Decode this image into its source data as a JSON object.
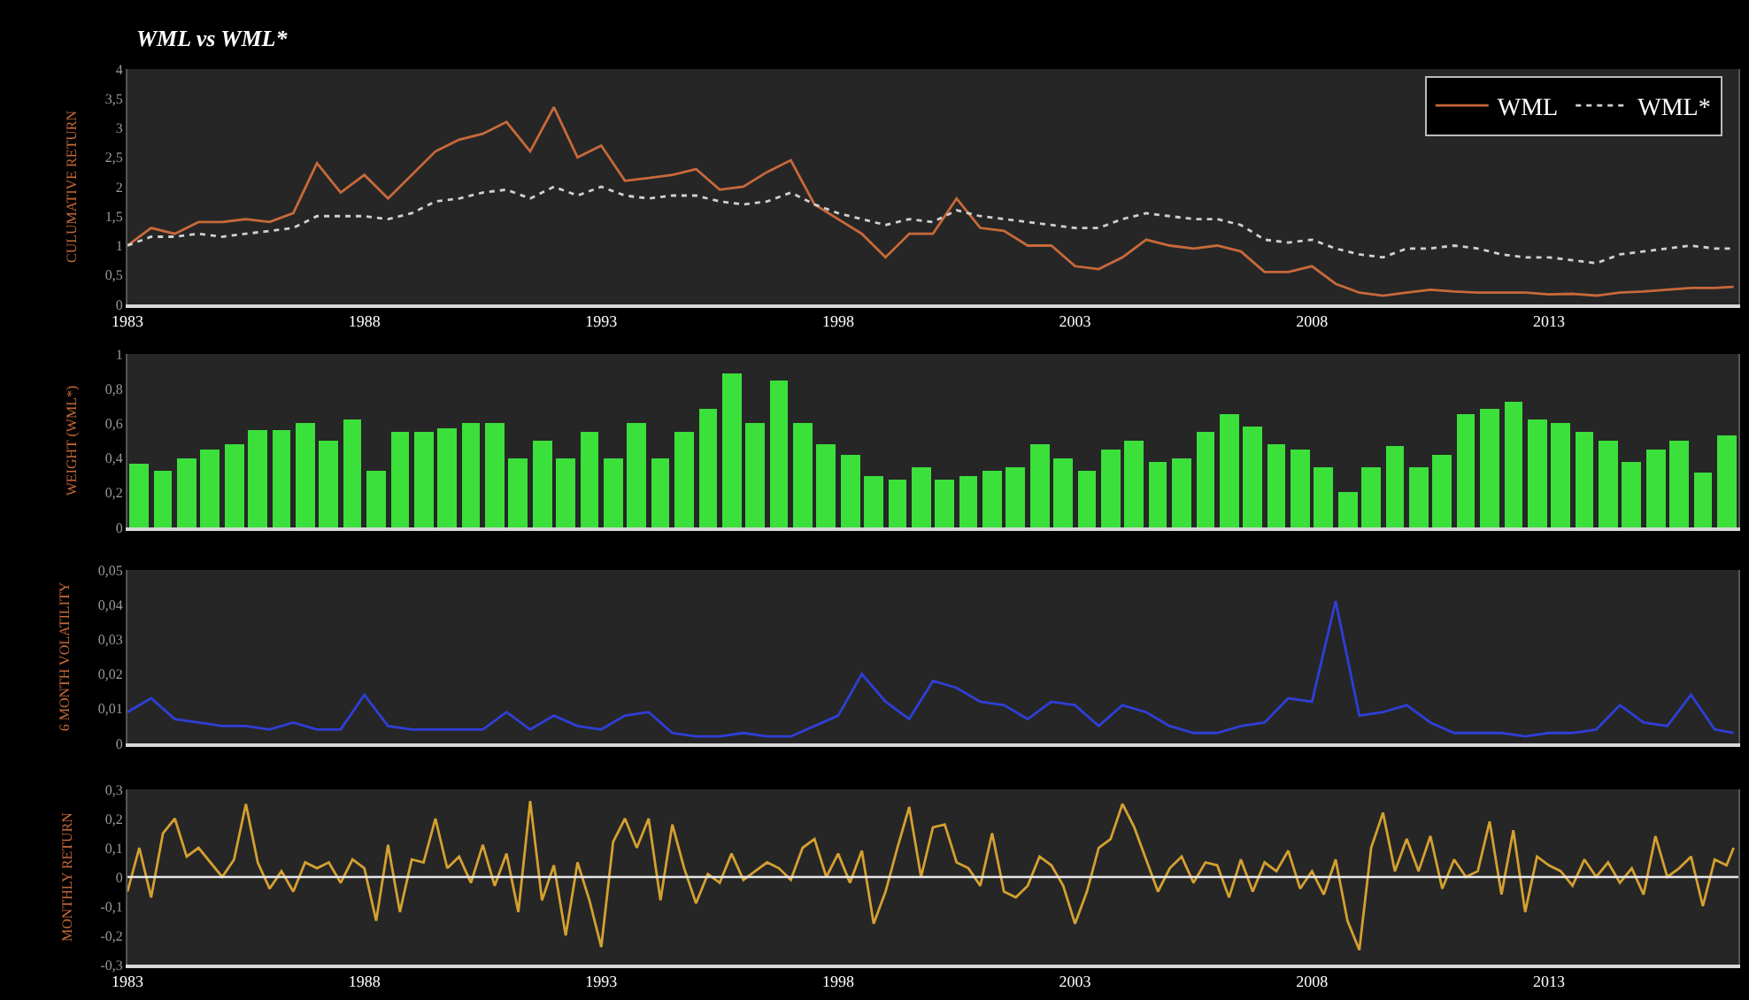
{
  "chart_data": [
    {
      "type": "line",
      "title": "WML vs WML*",
      "ylabel": "CULUMATIVE RETURN",
      "legend": "top right",
      "grid": false,
      "marker": "none",
      "xlim": [
        1983,
        2017
      ],
      "xticks": [
        1983,
        1988,
        1993,
        1998,
        2003,
        2008,
        2013
      ],
      "ylim": [
        0,
        4
      ],
      "yticks": [
        0,
        {
          "value": 0.5,
          "label": "0,5"
        },
        1,
        {
          "value": 1.5,
          "label": "1,5"
        },
        2,
        {
          "value": 2.5,
          "label": "2,5"
        },
        3,
        {
          "value": 3.5,
          "label": "3,5"
        },
        4
      ],
      "x": [
        1983,
        1983.5,
        1984,
        1984.5,
        1985,
        1985.5,
        1986,
        1986.5,
        1987,
        1987.5,
        1988,
        1988.5,
        1989,
        1989.5,
        1990,
        1990.5,
        1991,
        1991.5,
        1992,
        1992.5,
        1993,
        1993.5,
        1994,
        1994.5,
        1995,
        1995.5,
        1996,
        1996.5,
        1997,
        1997.5,
        1998,
        1998.5,
        1999,
        1999.5,
        2000,
        2000.5,
        2001,
        2001.5,
        2002,
        2002.5,
        2003,
        2003.5,
        2004,
        2004.5,
        2005,
        2005.5,
        2006,
        2006.5,
        2007,
        2007.5,
        2008,
        2008.5,
        2009,
        2009.5,
        2010,
        2010.5,
        2011,
        2011.5,
        2012,
        2012.5,
        2013,
        2013.5,
        2014,
        2014.5,
        2015,
        2015.5,
        2016,
        2016.5,
        2016.9
      ],
      "series": [
        {
          "name": "WML",
          "color": "#c8693a",
          "line_style": "solid",
          "values": [
            1.0,
            1.3,
            1.2,
            1.4,
            1.4,
            1.45,
            1.4,
            1.55,
            2.4,
            1.9,
            2.2,
            1.8,
            2.2,
            2.6,
            2.8,
            2.9,
            3.1,
            2.6,
            3.35,
            2.5,
            2.7,
            2.1,
            2.15,
            2.2,
            2.3,
            1.95,
            2.0,
            2.25,
            2.45,
            1.7,
            1.45,
            1.2,
            0.8,
            1.2,
            1.2,
            1.8,
            1.3,
            1.25,
            1.0,
            1.0,
            0.65,
            0.6,
            0.8,
            1.1,
            1.0,
            0.95,
            1.0,
            0.9,
            0.55,
            0.55,
            0.65,
            0.35,
            0.2,
            0.15,
            0.2,
            0.25,
            0.22,
            0.2,
            0.2,
            0.2,
            0.17,
            0.18,
            0.15,
            0.2,
            0.22,
            0.25,
            0.28,
            0.28,
            0.3
          ]
        },
        {
          "name": "WML*",
          "color": "#d0d0d0",
          "line_style": "dotted",
          "values": [
            1.0,
            1.15,
            1.15,
            1.2,
            1.15,
            1.2,
            1.25,
            1.3,
            1.5,
            1.5,
            1.5,
            1.45,
            1.55,
            1.75,
            1.8,
            1.9,
            1.95,
            1.8,
            2.0,
            1.85,
            2.0,
            1.85,
            1.8,
            1.85,
            1.85,
            1.75,
            1.7,
            1.75,
            1.9,
            1.7,
            1.55,
            1.45,
            1.35,
            1.45,
            1.4,
            1.6,
            1.5,
            1.45,
            1.4,
            1.35,
            1.3,
            1.3,
            1.45,
            1.55,
            1.5,
            1.45,
            1.45,
            1.35,
            1.1,
            1.05,
            1.1,
            0.95,
            0.85,
            0.8,
            0.95,
            0.95,
            1.0,
            0.95,
            0.85,
            0.8,
            0.8,
            0.75,
            0.7,
            0.85,
            0.9,
            0.95,
            1.0,
            0.95,
            0.95
          ]
        }
      ]
    },
    {
      "type": "bar",
      "ylabel": "WEIGHT (WML*)",
      "grid": false,
      "tick_labels": "y",
      "xlim": [
        1983,
        2017
      ],
      "xticks": [
        1983,
        1988,
        1993,
        1998,
        2003,
        2008,
        2013
      ],
      "ylim": [
        0,
        1
      ],
      "yticks": [
        0,
        {
          "value": 0.2,
          "label": "0,2"
        },
        {
          "value": 0.4,
          "label": "0,4"
        },
        {
          "value": 0.6,
          "label": "0,6"
        },
        {
          "value": 0.8,
          "label": "0,8"
        },
        1
      ],
      "x": [
        1983.25,
        1983.75,
        1984.25,
        1984.75,
        1985.25,
        1985.75,
        1986.25,
        1986.75,
        1987.25,
        1987.75,
        1988.25,
        1988.75,
        1989.25,
        1989.75,
        1990.25,
        1990.75,
        1991.25,
        1991.75,
        1992.25,
        1992.75,
        1993.25,
        1993.75,
        1994.25,
        1994.75,
        1995.25,
        1995.75,
        1996.25,
        1996.75,
        1997.25,
        1997.75,
        1998.25,
        1998.75,
        1999.25,
        1999.75,
        2000.25,
        2000.75,
        2001.25,
        2001.75,
        2002.25,
        2002.75,
        2003.25,
        2003.75,
        2004.25,
        2004.75,
        2005.25,
        2005.75,
        2006.25,
        2006.75,
        2007.25,
        2007.75,
        2008.25,
        2008.75,
        2009.25,
        2009.75,
        2010.25,
        2010.75,
        2011.25,
        2011.75,
        2012.25,
        2012.75,
        2013.25,
        2013.75,
        2014.25,
        2014.75,
        2015.25,
        2015.75,
        2016.25,
        2016.75
      ],
      "series": [
        {
          "color": "#3be03b",
          "values": [
            0.37,
            0.33,
            0.4,
            0.45,
            0.48,
            0.56,
            0.56,
            0.6,
            0.5,
            0.62,
            0.33,
            0.55,
            0.55,
            0.57,
            0.6,
            0.6,
            0.4,
            0.5,
            0.4,
            0.55,
            0.4,
            0.6,
            0.4,
            0.55,
            0.68,
            0.89,
            0.6,
            0.85,
            0.6,
            0.48,
            0.42,
            0.3,
            0.28,
            0.35,
            0.28,
            0.3,
            0.33,
            0.35,
            0.48,
            0.4,
            0.33,
            0.45,
            0.5,
            0.38,
            0.4,
            0.55,
            0.65,
            0.58,
            0.48,
            0.45,
            0.35,
            0.2,
            0.35,
            0.47,
            0.35,
            0.42,
            0.65,
            0.68,
            0.72,
            0.62,
            0.6,
            0.55,
            0.5,
            0.38,
            0.45,
            0.5,
            0.32,
            0.53
          ]
        }
      ]
    },
    {
      "type": "line",
      "ylabel": "6 MONTH VOLATILITY",
      "grid": false,
      "marker": "none",
      "tick_labels": "y",
      "xlim": [
        1983,
        2017
      ],
      "xticks": [
        1983,
        1988,
        1993,
        1998,
        2003,
        2008,
        2013
      ],
      "ylim": [
        0,
        0.05
      ],
      "yticks": [
        0,
        {
          "value": 0.01,
          "label": "0,01"
        },
        {
          "value": 0.02,
          "label": "0,02"
        },
        {
          "value": 0.03,
          "label": "0,03"
        },
        {
          "value": 0.04,
          "label": "0,04"
        },
        {
          "value": 0.05,
          "label": "0,05"
        }
      ],
      "x": [
        1983,
        1983.5,
        1984,
        1984.5,
        1985,
        1985.5,
        1986,
        1986.5,
        1987,
        1987.5,
        1988,
        1988.5,
        1989,
        1989.5,
        1990,
        1990.5,
        1991,
        1991.5,
        1992,
        1992.5,
        1993,
        1993.5,
        1994,
        1994.5,
        1995,
        1995.5,
        1996,
        1996.5,
        1997,
        1997.5,
        1998,
        1998.5,
        1999,
        1999.5,
        2000,
        2000.5,
        2001,
        2001.5,
        2002,
        2002.5,
        2003,
        2003.5,
        2004,
        2004.5,
        2005,
        2005.5,
        2006,
        2006.5,
        2007,
        2007.5,
        2008,
        2008.5,
        2009,
        2009.5,
        2010,
        2010.5,
        2011,
        2011.5,
        2012,
        2012.5,
        2013,
        2013.5,
        2014,
        2014.5,
        2015,
        2015.5,
        2016,
        2016.5,
        2016.9
      ],
      "series": [
        {
          "color": "#2f3fd6",
          "values": [
            0.009,
            0.013,
            0.007,
            0.006,
            0.005,
            0.005,
            0.004,
            0.006,
            0.004,
            0.004,
            0.014,
            0.005,
            0.004,
            0.004,
            0.004,
            0.004,
            0.009,
            0.004,
            0.008,
            0.005,
            0.004,
            0.008,
            0.009,
            0.003,
            0.002,
            0.002,
            0.003,
            0.002,
            0.002,
            0.005,
            0.008,
            0.02,
            0.012,
            0.007,
            0.018,
            0.016,
            0.012,
            0.011,
            0.007,
            0.012,
            0.011,
            0.005,
            0.011,
            0.009,
            0.005,
            0.003,
            0.003,
            0.005,
            0.006,
            0.013,
            0.012,
            0.041,
            0.008,
            0.009,
            0.011,
            0.006,
            0.003,
            0.003,
            0.003,
            0.002,
            0.003,
            0.003,
            0.004,
            0.011,
            0.006,
            0.005,
            0.014,
            0.004,
            0.003
          ]
        }
      ]
    },
    {
      "type": "line",
      "ylabel": "MONTHLY RETURN",
      "grid": false,
      "marker": "none",
      "xlim": [
        1983,
        2017
      ],
      "xticks": [
        1983,
        1988,
        1993,
        1998,
        2003,
        2008,
        2013
      ],
      "ylim": [
        -0.3,
        0.3
      ],
      "yticks": [
        {
          "value": -0.3,
          "label": "-0,3"
        },
        {
          "value": -0.2,
          "label": "-0,2"
        },
        {
          "value": -0.1,
          "label": "-0,1"
        },
        0,
        {
          "value": 0.1,
          "label": "0,1"
        },
        {
          "value": 0.2,
          "label": "0,2"
        },
        {
          "value": 0.3,
          "label": "0,3"
        }
      ],
      "ref_lines": [
        {
          "axis": "y",
          "value": 0,
          "color": "#e8e8e8"
        }
      ],
      "x": [
        1983,
        1983.25,
        1983.5,
        1983.75,
        1984,
        1984.25,
        1984.5,
        1984.75,
        1985,
        1985.25,
        1985.5,
        1985.75,
        1986,
        1986.25,
        1986.5,
        1986.75,
        1987,
        1987.25,
        1987.5,
        1987.75,
        1988,
        1988.25,
        1988.5,
        1988.75,
        1989,
        1989.25,
        1989.5,
        1989.75,
        1990,
        1990.25,
        1990.5,
        1990.75,
        1991,
        1991.25,
        1991.5,
        1991.75,
        1992,
        1992.25,
        1992.5,
        1992.75,
        1993,
        1993.25,
        1993.5,
        1993.75,
        1994,
        1994.25,
        1994.5,
        1994.75,
        1995,
        1995.25,
        1995.5,
        1995.75,
        1996,
        1996.25,
        1996.5,
        1996.75,
        1997,
        1997.25,
        1997.5,
        1997.75,
        1998,
        1998.25,
        1998.5,
        1998.75,
        1999,
        1999.25,
        1999.5,
        1999.75,
        2000,
        2000.25,
        2000.5,
        2000.75,
        2001,
        2001.25,
        2001.5,
        2001.75,
        2002,
        2002.25,
        2002.5,
        2002.75,
        2003,
        2003.25,
        2003.5,
        2003.75,
        2004,
        2004.25,
        2004.5,
        2004.75,
        2005,
        2005.25,
        2005.5,
        2005.75,
        2006,
        2006.25,
        2006.5,
        2006.75,
        2007,
        2007.25,
        2007.5,
        2007.75,
        2008,
        2008.25,
        2008.5,
        2008.75,
        2009,
        2009.25,
        2009.5,
        2009.75,
        2010,
        2010.25,
        2010.5,
        2010.75,
        2011,
        2011.25,
        2011.5,
        2011.75,
        2012,
        2012.25,
        2012.5,
        2012.75,
        2013,
        2013.25,
        2013.5,
        2013.75,
        2014,
        2014.25,
        2014.5,
        2014.75,
        2015,
        2015.25,
        2015.5,
        2015.75,
        2016,
        2016.25,
        2016.5,
        2016.75,
        2016.9
      ],
      "series": [
        {
          "color": "#d4a030",
          "values": [
            -0.05,
            0.1,
            -0.07,
            0.15,
            0.2,
            0.07,
            0.1,
            0.05,
            0.0,
            0.06,
            0.25,
            0.05,
            -0.04,
            0.02,
            -0.05,
            0.05,
            0.03,
            0.05,
            -0.02,
            0.06,
            0.03,
            -0.15,
            0.11,
            -0.12,
            0.06,
            0.05,
            0.2,
            0.03,
            0.07,
            -0.02,
            0.11,
            -0.03,
            0.08,
            -0.12,
            0.26,
            -0.08,
            0.04,
            -0.2,
            0.05,
            -0.08,
            -0.24,
            0.12,
            0.2,
            0.1,
            0.2,
            -0.08,
            0.18,
            0.03,
            -0.09,
            0.01,
            -0.02,
            0.08,
            -0.01,
            0.02,
            0.05,
            0.03,
            -0.01,
            0.1,
            0.13,
            0.0,
            0.08,
            -0.02,
            0.09,
            -0.16,
            -0.05,
            0.1,
            0.24,
            0.0,
            0.17,
            0.18,
            0.05,
            0.03,
            -0.03,
            0.15,
            -0.05,
            -0.07,
            -0.03,
            0.07,
            0.04,
            -0.03,
            -0.16,
            -0.05,
            0.1,
            0.13,
            0.25,
            0.17,
            0.06,
            -0.05,
            0.03,
            0.07,
            -0.02,
            0.05,
            0.04,
            -0.07,
            0.06,
            -0.05,
            0.05,
            0.02,
            0.09,
            -0.04,
            0.02,
            -0.06,
            0.06,
            -0.15,
            -0.25,
            0.1,
            0.22,
            0.02,
            0.13,
            0.02,
            0.14,
            -0.04,
            0.06,
            0.0,
            0.02,
            0.19,
            -0.06,
            0.16,
            -0.12,
            0.07,
            0.04,
            0.02,
            -0.03,
            0.06,
            0.0,
            0.05,
            -0.02,
            0.03,
            -0.06,
            0.14,
            0.0,
            0.03,
            0.07,
            -0.1,
            0.06,
            0.04,
            0.1
          ]
        }
      ]
    }
  ]
}
